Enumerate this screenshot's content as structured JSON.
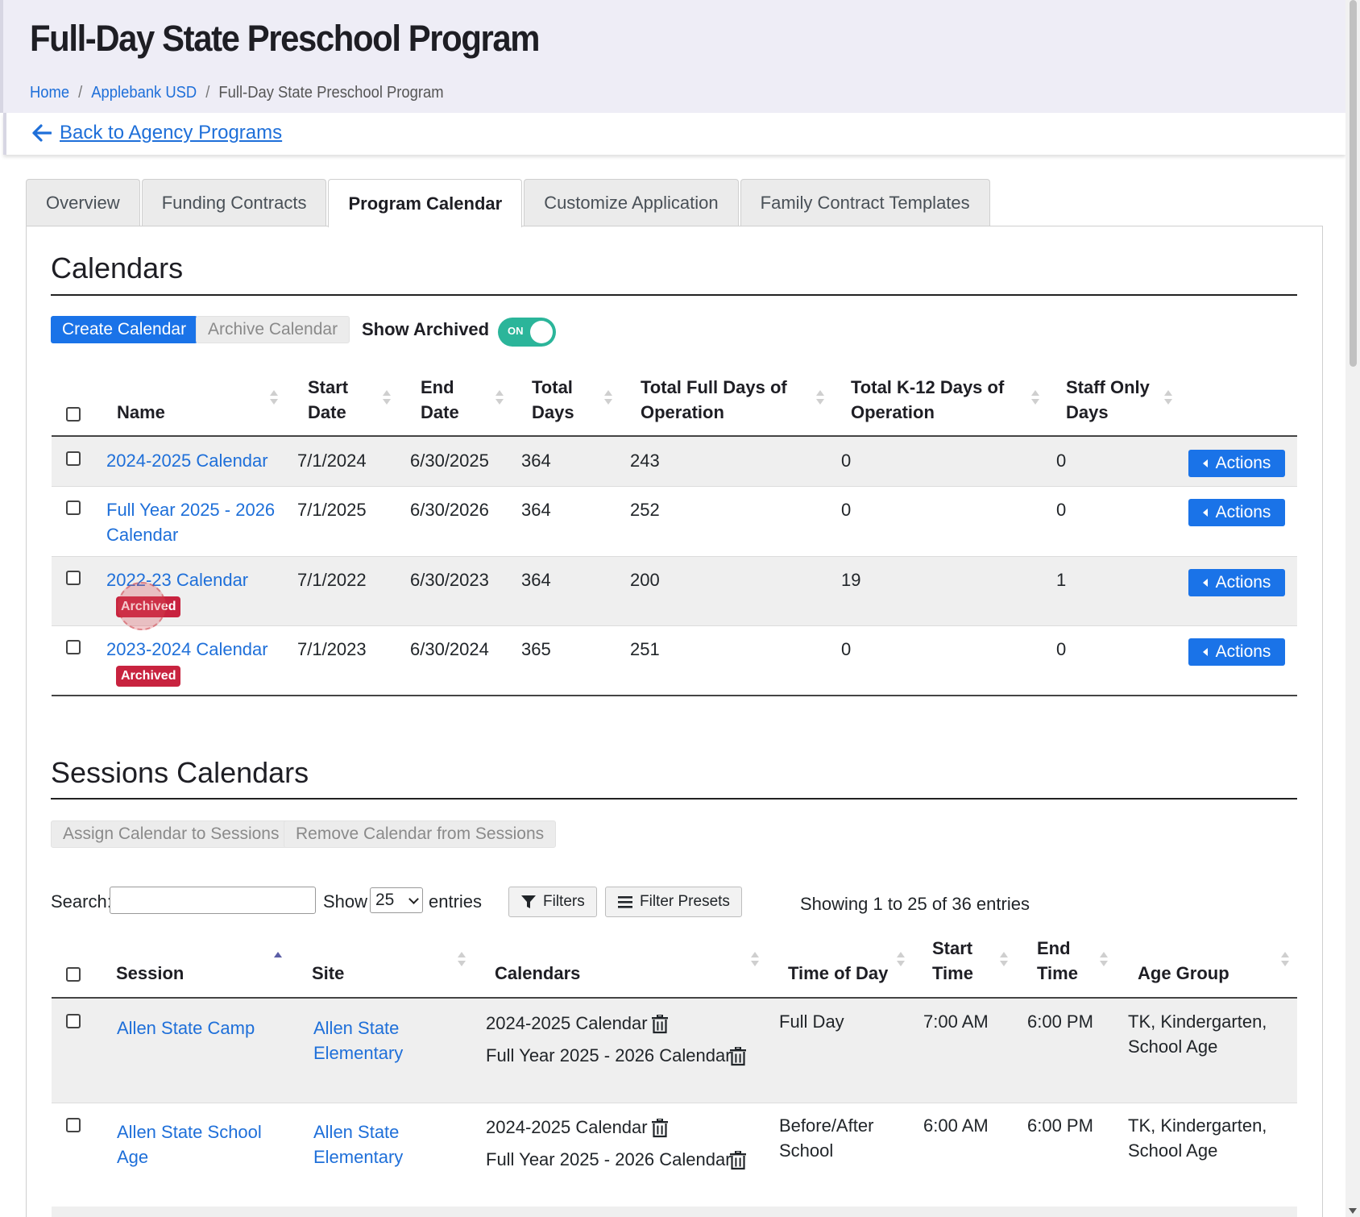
{
  "header": {
    "title": "Full-Day State Preschool Program",
    "breadcrumb": [
      "Home",
      "Applebank USD",
      "Full-Day State Preschool Program"
    ],
    "back_link": "Back to Agency Programs"
  },
  "tabs": [
    "Overview",
    "Funding Contracts",
    "Program Calendar",
    "Customize Application",
    "Family Contract Templates"
  ],
  "active_tab": "Program Calendar",
  "calendars": {
    "heading": "Calendars",
    "create_button": "Create Calendar",
    "archive_button": "Archive Calendar",
    "show_archived_label": "Show Archived",
    "toggle_text": "ON",
    "columns": [
      "Name",
      "Start Date",
      "End Date",
      "Total Days",
      "Total Full Days of Operation",
      "Total K-12 Days of Operation",
      "Staff Only Days"
    ],
    "column_lines": [
      [
        "Name"
      ],
      [
        "Start",
        "Date"
      ],
      [
        "End",
        "Date"
      ],
      [
        "Total",
        "Days"
      ],
      [
        "Total Full Days of",
        "Operation"
      ],
      [
        "Total K-12 Days of",
        "Operation"
      ],
      [
        "Staff Only",
        "Days"
      ]
    ],
    "actions_label": "Actions",
    "archived_badge": "Archived",
    "rows": [
      {
        "name_lines": [
          "2024-2025 Calendar"
        ],
        "start": "7/1/2024",
        "end": "6/30/2025",
        "total": "364",
        "full": "243",
        "k12": "0",
        "staff": "0",
        "archived": false
      },
      {
        "name_lines": [
          "Full Year 2025 - 2026",
          "Calendar"
        ],
        "start": "7/1/2025",
        "end": "6/30/2026",
        "total": "364",
        "full": "252",
        "k12": "0",
        "staff": "0",
        "archived": false
      },
      {
        "name_lines": [
          "2022-23 Calendar"
        ],
        "start": "7/1/2022",
        "end": "6/30/2023",
        "total": "364",
        "full": "200",
        "k12": "19",
        "staff": "1",
        "archived": true
      },
      {
        "name_lines": [
          "2023-2024 Calendar"
        ],
        "start": "7/1/2023",
        "end": "6/30/2024",
        "total": "365",
        "full": "251",
        "k12": "0",
        "staff": "0",
        "archived": true
      }
    ]
  },
  "sessions": {
    "heading": "Sessions Calendars",
    "assign_button": "Assign Calendar to Sessions",
    "remove_button": "Remove Calendar from Sessions",
    "search_label": "Search:",
    "search_value": "",
    "show_label": "Show",
    "page_size": "25",
    "entries_label": "entries",
    "filters_button": "Filters",
    "filter_presets_button": "Filter Presets",
    "info": "Showing 1 to 25 of 36 entries",
    "columns": [
      "Session",
      "Site",
      "Calendars",
      "Time of Day",
      "Start Time",
      "End Time",
      "Age Group"
    ],
    "column_lines": [
      [
        "Session"
      ],
      [
        "Site"
      ],
      [
        "Calendars"
      ],
      [
        "Time of Day"
      ],
      [
        "Start",
        "Time"
      ],
      [
        "End",
        "Time"
      ],
      [
        "Age Group"
      ]
    ],
    "rows": [
      {
        "session_lines": [
          "Allen State Camp"
        ],
        "site_lines": [
          "Allen State",
          "Elementary"
        ],
        "calendars": [
          "2024-2025 Calendar",
          "Full Year 2025 - 2026 Calendar"
        ],
        "time_of_day_lines": [
          "Full Day"
        ],
        "start": "7:00 AM",
        "end": "6:00 PM",
        "age_lines": [
          "TK, Kindergarten,",
          "School Age"
        ]
      },
      {
        "session_lines": [
          "Allen State School",
          "Age"
        ],
        "site_lines": [
          "Allen State",
          "Elementary"
        ],
        "calendars": [
          "2024-2025 Calendar",
          "Full Year 2025 - 2026 Calendar"
        ],
        "time_of_day_lines": [
          "Before/After",
          "School"
        ],
        "start": "6:00 AM",
        "end": "6:00 PM",
        "age_lines": [
          "TK, Kindergarten,",
          "School Age"
        ]
      }
    ]
  },
  "colors": {
    "primary": "#1a73e8",
    "link": "#1e6fd9",
    "archived_badge": "#c8233f",
    "toggle_on": "#2bb59a"
  },
  "icons": [
    "arrow-left-icon",
    "sort-icon",
    "filter-icon",
    "list-icon",
    "trash-icon",
    "caret-left-icon"
  ]
}
